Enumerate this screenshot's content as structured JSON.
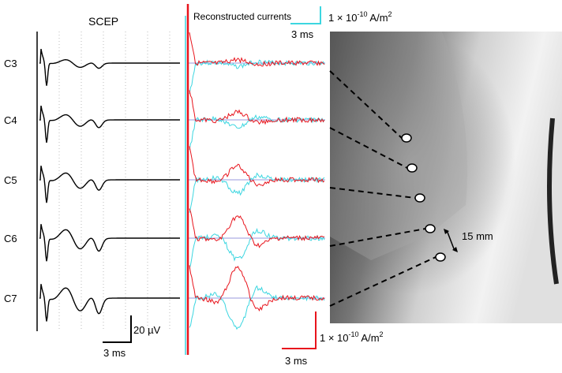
{
  "left_panel": {
    "title": "SCEP",
    "scale_amplitude": "20 µV",
    "scale_time": "3 ms"
  },
  "levels": [
    "C3",
    "C4",
    "C5",
    "C6",
    "C7"
  ],
  "middle_panel": {
    "title": "Reconstructed currents",
    "top_scale_time": "3 ms",
    "top_scale_amplitude": "1 × 10",
    "top_scale_exp": "-10",
    "top_scale_unit": " A/m",
    "top_scale_unit_exp": "2",
    "bottom_scale_time": "3 ms",
    "bottom_scale_amplitude": "1 × 10",
    "bottom_scale_exp": "-10",
    "bottom_scale_unit": " A/m",
    "bottom_scale_unit_exp": "2"
  },
  "xray": {
    "distance_label": "15 mm"
  },
  "colors": {
    "scep": "#000000",
    "current_red": "#e8141c",
    "current_cyan": "#3cd6e0",
    "baseline": "#9999dd",
    "top_scale": "#3cd6e0",
    "bottom_scale": "#e8141c"
  }
}
